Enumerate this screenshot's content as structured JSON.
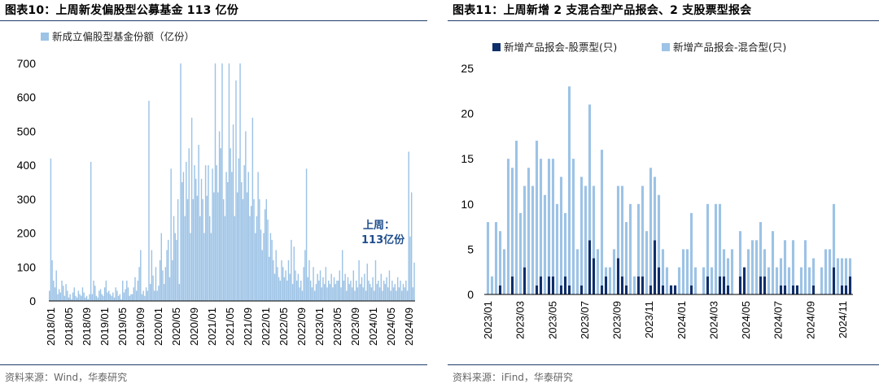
{
  "colors": {
    "light_blue": "#9dc3e6",
    "dark_blue": "#0f2f6b",
    "rule": "#1f3d6b"
  },
  "left": {
    "title": "图表10：上周新发偏股型公募基金 113 亿份",
    "source": "资料来源：Wind，华泰研究",
    "annotation_line1": "上周：",
    "annotation_line2": "113亿份",
    "chart_data": {
      "type": "bar",
      "title": "图表10：上周新发偏股型公募基金 113 亿份",
      "series": [
        {
          "name": "新成立偏股型基金份额（亿份）"
        }
      ],
      "ylim": [
        0,
        700
      ],
      "yticks": [
        0,
        100,
        200,
        300,
        400,
        500,
        600,
        700
      ],
      "xticks": [
        "2018/01",
        "2018/05",
        "2018/09",
        "2019/01",
        "2019/05",
        "2019/09",
        "2020/01",
        "2020/05",
        "2020/09",
        "2021/01",
        "2021/05",
        "2021/09",
        "2022/01",
        "2022/05",
        "2022/09",
        "2023/01",
        "2023/05",
        "2023/09",
        "2024/01",
        "2024/05",
        "2024/09"
      ],
      "weekly_values": [
        30,
        420,
        120,
        60,
        40,
        90,
        20,
        35,
        25,
        60,
        45,
        15,
        50,
        30,
        10,
        20,
        5,
        25,
        40,
        15,
        10,
        30,
        20,
        15,
        40,
        25,
        10,
        15,
        5,
        20,
        410,
        20,
        60,
        45,
        15,
        10,
        30,
        35,
        20,
        15,
        40,
        60,
        25,
        30,
        20,
        15,
        25,
        10,
        40,
        30,
        15,
        20,
        5,
        60,
        25,
        35,
        60,
        40,
        15,
        20,
        20,
        40,
        70,
        30,
        60,
        100,
        150,
        20,
        30,
        15,
        40,
        30,
        590,
        50,
        150,
        75,
        30,
        100,
        30,
        45,
        120,
        200,
        90,
        50,
        100,
        150,
        180,
        70,
        390,
        120,
        250,
        200,
        180,
        300,
        50,
        700,
        350,
        380,
        250,
        410,
        300,
        450,
        200,
        540,
        300,
        400,
        360,
        310,
        460,
        250,
        360,
        300,
        200,
        400,
        310,
        400,
        250,
        200,
        390,
        320,
        700,
        400,
        320,
        500,
        450,
        700,
        300,
        250,
        380,
        350,
        700,
        450,
        380,
        520,
        250,
        650,
        320,
        420,
        700,
        350,
        300,
        400,
        500,
        320,
        380,
        250,
        280,
        540,
        300,
        200,
        250,
        380,
        300,
        210,
        150,
        200,
        270,
        300,
        240,
        130,
        200,
        180,
        120,
        80,
        150,
        100,
        70,
        60,
        120,
        100,
        70,
        90,
        60,
        120,
        80,
        180,
        50,
        160,
        90,
        60,
        80,
        40,
        60,
        30,
        100,
        150,
        390,
        70,
        120,
        60,
        40,
        100,
        30,
        50,
        80,
        60,
        90,
        40,
        70,
        50,
        100,
        40,
        60,
        50,
        80,
        40,
        70,
        50,
        60,
        60,
        90,
        40,
        150,
        60,
        80,
        30,
        70,
        50,
        60,
        40,
        90,
        30,
        60,
        40,
        120,
        50,
        70,
        40,
        80,
        30,
        110,
        60,
        50,
        40,
        70,
        30,
        120,
        50,
        60,
        40,
        80,
        30,
        60,
        50,
        70,
        40,
        90,
        30,
        60,
        40,
        50,
        30,
        70,
        40,
        60,
        30,
        50,
        40,
        60,
        30,
        440,
        190,
        320,
        40,
        113
      ]
    }
  },
  "right": {
    "title": "图表11：上周新增 2 支混合型产品报会、2 支股票型报会",
    "source": "资料来源：iFind，华泰研究",
    "chart_data": {
      "type": "bar",
      "title": "图表11：上周新增 2 支混合型产品报会、2 支股票型报会",
      "series": [
        {
          "name": "新增产品报会-股票型(只)",
          "values": [
            0,
            0,
            0,
            1,
            0,
            0,
            2,
            0,
            0,
            3,
            0,
            0,
            1,
            2,
            0,
            2,
            2,
            0,
            1,
            2,
            1,
            0,
            0,
            1,
            0,
            6,
            4,
            0,
            1,
            2,
            0,
            0,
            4,
            2,
            1,
            0,
            0,
            2,
            2,
            0,
            1,
            6,
            3,
            1,
            0,
            1,
            1,
            0,
            0,
            0,
            1,
            0,
            0,
            0,
            2,
            0,
            0,
            2,
            2,
            1,
            0,
            0,
            2,
            3,
            0,
            0,
            0,
            2,
            2,
            0,
            0,
            0,
            1,
            1,
            0,
            1,
            1,
            0,
            0,
            0,
            1,
            0,
            0,
            0,
            0,
            3,
            0,
            1,
            1,
            2
          ]
        },
        {
          "name": "新增产品报会-混合型(只)",
          "values": [
            8,
            2,
            8,
            6,
            5,
            15,
            12,
            17,
            9,
            9,
            14,
            12,
            16,
            13,
            11,
            13,
            13,
            10,
            12,
            7,
            22,
            15,
            5,
            12,
            12,
            15,
            8,
            5,
            15,
            1,
            3,
            5,
            8,
            10,
            7,
            10,
            2,
            8,
            10,
            7,
            13,
            7,
            8,
            4,
            3,
            0,
            0,
            3,
            5,
            5,
            8,
            3,
            0,
            3,
            8,
            3,
            10,
            8,
            3,
            3,
            5,
            0,
            5,
            0,
            5,
            6,
            6,
            6,
            3,
            3,
            7,
            3,
            3,
            5,
            3,
            5,
            0,
            3,
            6,
            3,
            3,
            0,
            3,
            5,
            5,
            7,
            4,
            3,
            3,
            2
          ]
        }
      ],
      "stacked": true,
      "ylim": [
        0,
        25
      ],
      "yticks": [
        0,
        5,
        10,
        15,
        20,
        25
      ],
      "xticks": [
        "2023/01",
        "2023/03",
        "2023/05",
        "2023/07",
        "2023/09",
        "2023/11",
        "2024/01",
        "2024/03",
        "2024/05",
        "2024/07",
        "2024/09",
        "2024/11"
      ]
    }
  }
}
